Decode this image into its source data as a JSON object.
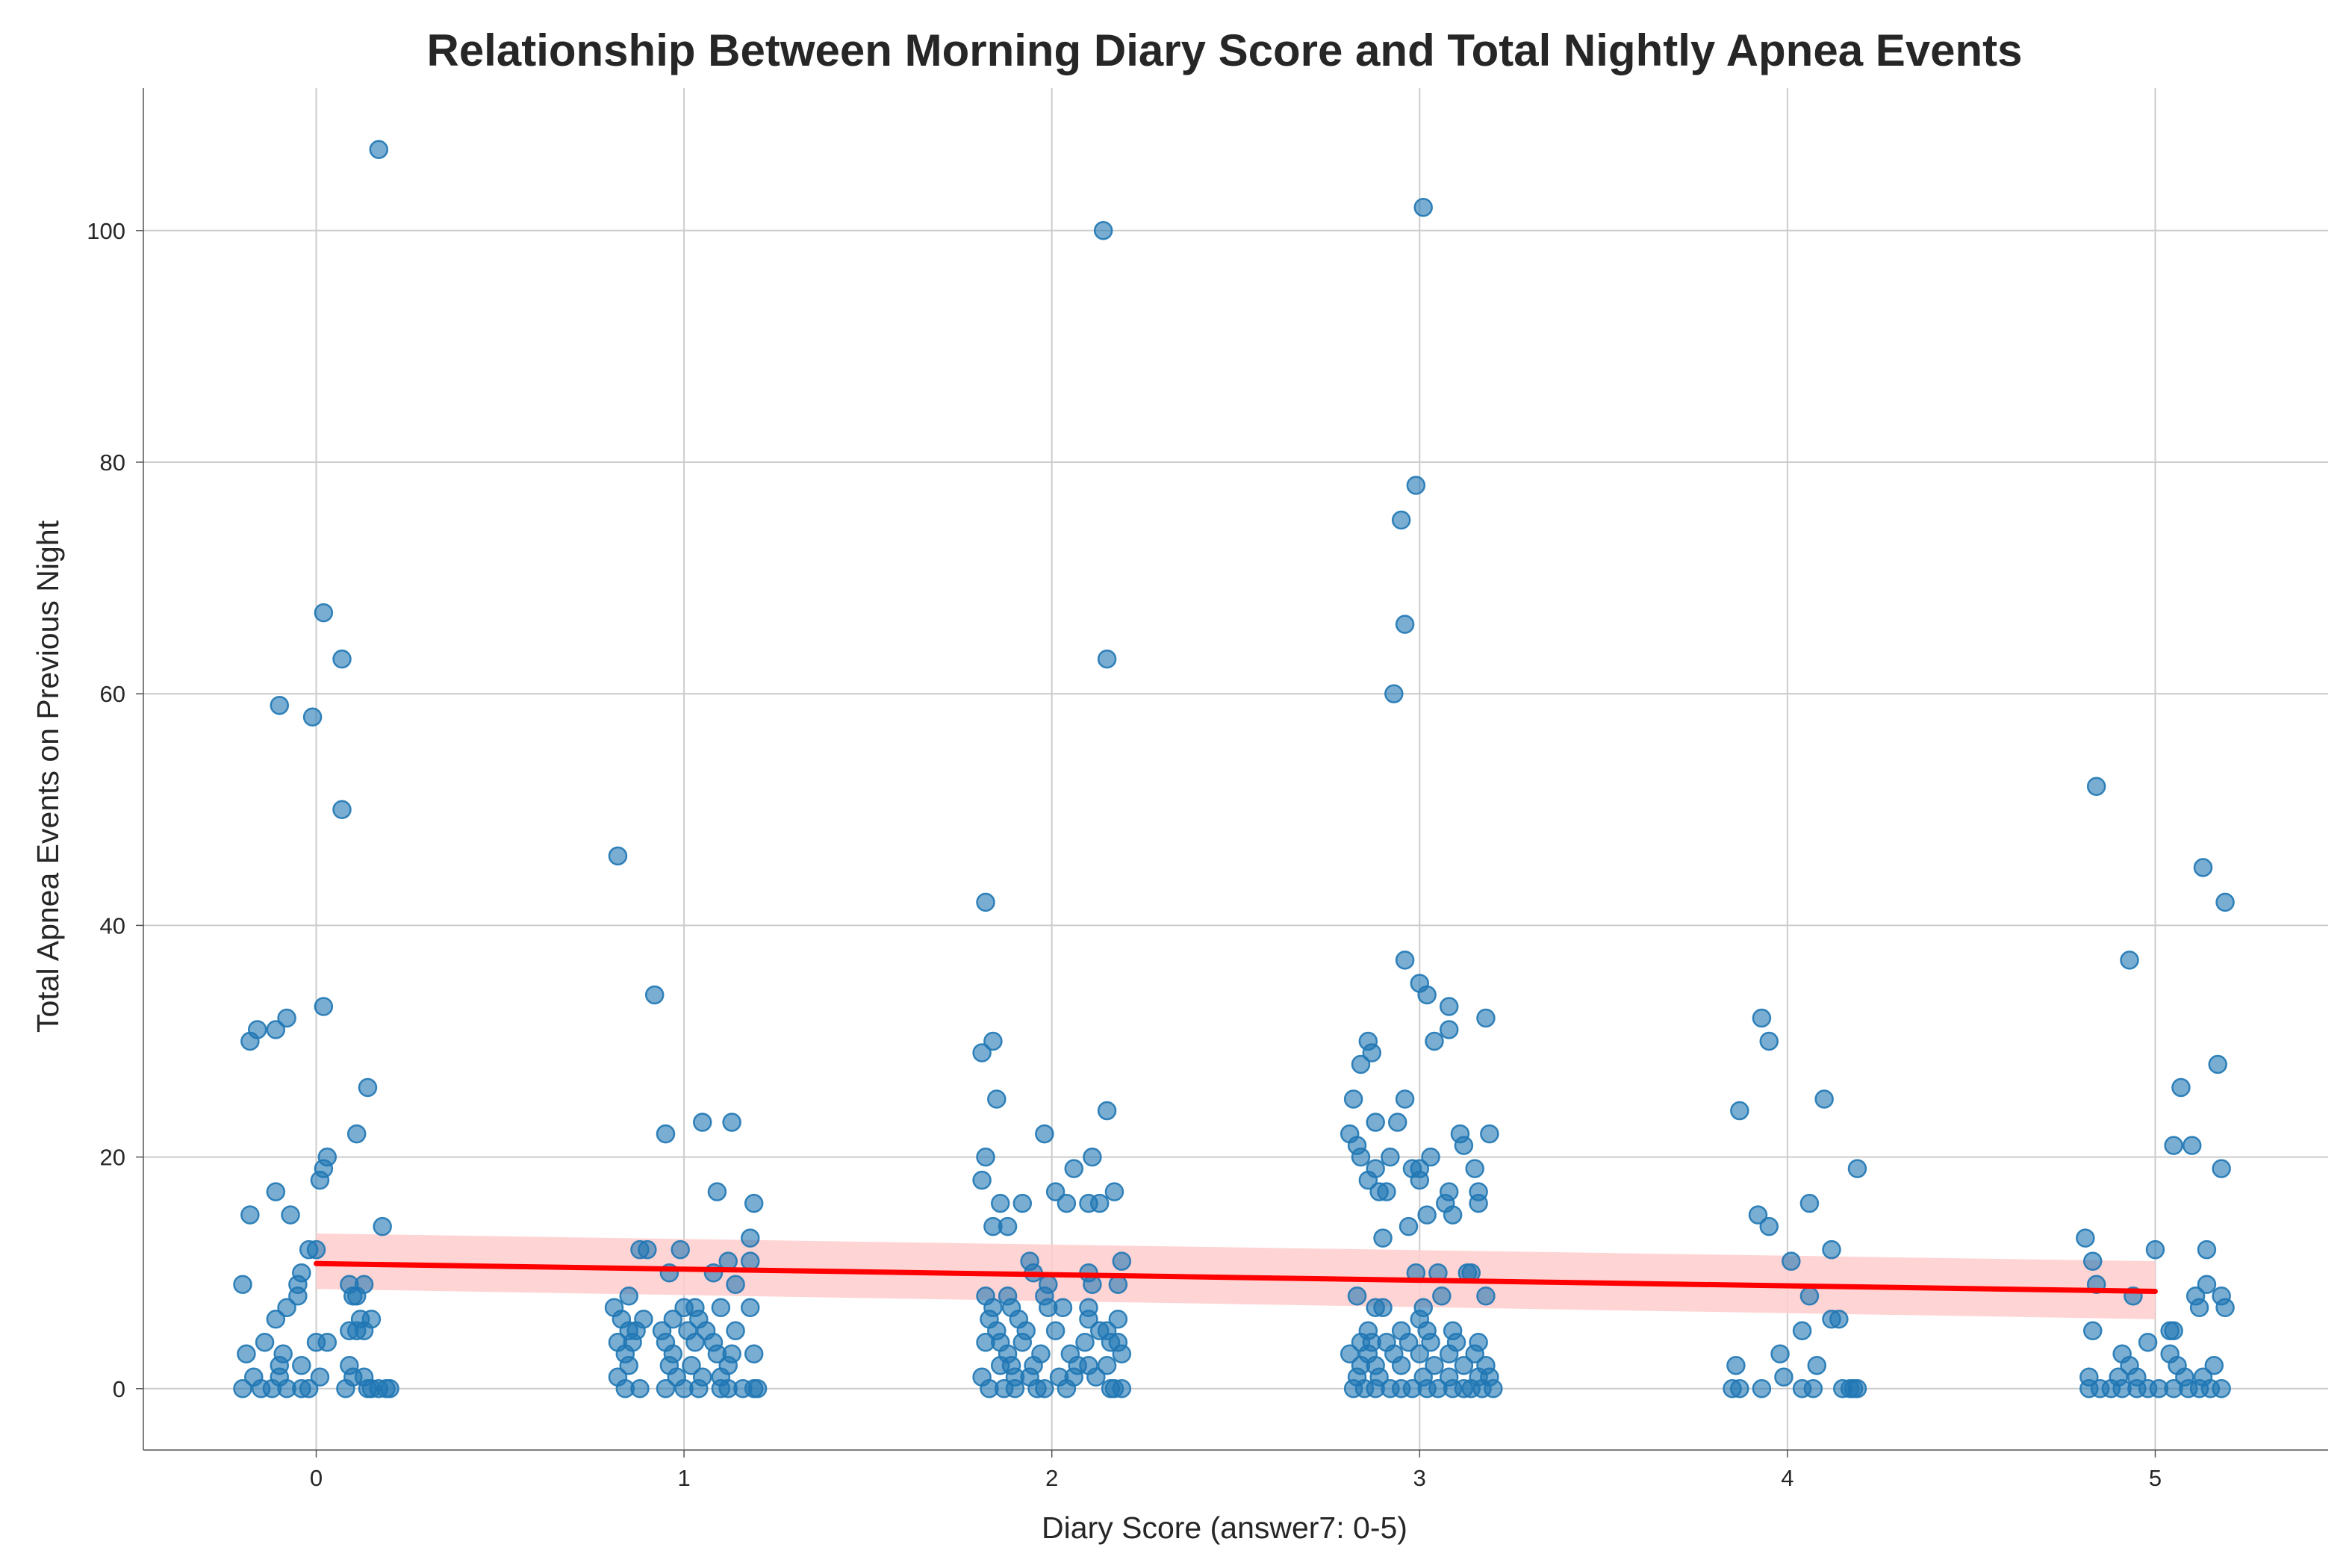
{
  "chart_data": {
    "type": "scatter",
    "title": "Relationship Between Morning Diary Score and Total Nightly Apnea Events",
    "xlabel": "Diary Score (answer7: 0-5)",
    "ylabel": "Total Apnea Events on Previous Night",
    "xlim": [
      -0.47,
      5.47
    ],
    "ylim": [
      -5.3,
      112.3
    ],
    "xticks": [
      0,
      1,
      2,
      3,
      4,
      5
    ],
    "yticks": [
      0,
      20,
      40,
      60,
      80,
      100
    ],
    "grid": true,
    "legend": "none",
    "colors": {
      "points": "#1f77b4",
      "regression_line": "#ff0000",
      "confidence_band": "#ffcccc"
    },
    "regression": {
      "x": [
        0,
        5
      ],
      "y": [
        10.8,
        8.4
      ],
      "ci_lower": [
        8.6,
        6.0
      ],
      "ci_upper": [
        13.4,
        11.0
      ]
    },
    "points": [
      [
        -0.2,
        0
      ],
      [
        -0.15,
        0
      ],
      [
        -0.12,
        0
      ],
      [
        -0.08,
        0
      ],
      [
        -0.04,
        0
      ],
      [
        -0.02,
        0
      ],
      [
        0.08,
        0
      ],
      [
        0.14,
        0
      ],
      [
        0.15,
        0
      ],
      [
        0.17,
        0
      ],
      [
        0.19,
        0
      ],
      [
        0.2,
        0
      ],
      [
        -0.17,
        1
      ],
      [
        -0.1,
        1
      ],
      [
        0.01,
        1
      ],
      [
        0.1,
        1
      ],
      [
        0.13,
        1
      ],
      [
        -0.1,
        2
      ],
      [
        -0.04,
        2
      ],
      [
        0.09,
        2
      ],
      [
        -0.19,
        3
      ],
      [
        -0.09,
        3
      ],
      [
        -0.14,
        4
      ],
      [
        0.0,
        4
      ],
      [
        0.03,
        4
      ],
      [
        0.09,
        5
      ],
      [
        0.11,
        5
      ],
      [
        0.13,
        5
      ],
      [
        -0.11,
        6
      ],
      [
        0.12,
        6
      ],
      [
        0.15,
        6
      ],
      [
        -0.08,
        7
      ],
      [
        -0.05,
        8
      ],
      [
        0.1,
        8
      ],
      [
        0.11,
        8
      ],
      [
        -0.05,
        9
      ],
      [
        -0.2,
        9
      ],
      [
        0.09,
        9
      ],
      [
        0.13,
        9
      ],
      [
        -0.04,
        10
      ],
      [
        -0.02,
        12
      ],
      [
        0.0,
        12
      ],
      [
        0.18,
        14
      ],
      [
        -0.18,
        15
      ],
      [
        -0.07,
        15
      ],
      [
        -0.11,
        17
      ],
      [
        0.01,
        18
      ],
      [
        0.02,
        19
      ],
      [
        0.03,
        20
      ],
      [
        0.11,
        22
      ],
      [
        0.14,
        26
      ],
      [
        -0.18,
        30
      ],
      [
        -0.16,
        31
      ],
      [
        -0.11,
        31
      ],
      [
        -0.08,
        32
      ],
      [
        0.02,
        33
      ],
      [
        0.07,
        50
      ],
      [
        -0.01,
        58
      ],
      [
        -0.1,
        59
      ],
      [
        0.07,
        63
      ],
      [
        0.02,
        67
      ],
      [
        0.17,
        107
      ],
      [
        0.84,
        0
      ],
      [
        0.88,
        0
      ],
      [
        0.95,
        0
      ],
      [
        1.0,
        0
      ],
      [
        1.04,
        0
      ],
      [
        1.1,
        0
      ],
      [
        1.12,
        0
      ],
      [
        1.16,
        0
      ],
      [
        1.19,
        0
      ],
      [
        1.2,
        0
      ],
      [
        0.82,
        1
      ],
      [
        0.98,
        1
      ],
      [
        1.05,
        1
      ],
      [
        1.1,
        1
      ],
      [
        0.85,
        2
      ],
      [
        0.96,
        2
      ],
      [
        1.02,
        2
      ],
      [
        1.12,
        2
      ],
      [
        0.84,
        3
      ],
      [
        0.97,
        3
      ],
      [
        1.09,
        3
      ],
      [
        1.13,
        3
      ],
      [
        1.19,
        3
      ],
      [
        0.82,
        4
      ],
      [
        0.86,
        4
      ],
      [
        0.95,
        4
      ],
      [
        1.03,
        4
      ],
      [
        1.08,
        4
      ],
      [
        0.85,
        5
      ],
      [
        0.87,
        5
      ],
      [
        0.94,
        5
      ],
      [
        1.01,
        5
      ],
      [
        1.06,
        5
      ],
      [
        1.14,
        5
      ],
      [
        0.83,
        6
      ],
      [
        0.89,
        6
      ],
      [
        0.97,
        6
      ],
      [
        1.04,
        6
      ],
      [
        0.81,
        7
      ],
      [
        1.0,
        7
      ],
      [
        1.03,
        7
      ],
      [
        1.1,
        7
      ],
      [
        1.18,
        7
      ],
      [
        0.85,
        8
      ],
      [
        1.14,
        9
      ],
      [
        0.96,
        10
      ],
      [
        1.08,
        10
      ],
      [
        1.12,
        11
      ],
      [
        1.18,
        11
      ],
      [
        0.88,
        12
      ],
      [
        0.9,
        12
      ],
      [
        0.99,
        12
      ],
      [
        1.18,
        13
      ],
      [
        1.19,
        16
      ],
      [
        1.09,
        17
      ],
      [
        0.95,
        22
      ],
      [
        1.05,
        23
      ],
      [
        1.13,
        23
      ],
      [
        0.92,
        34
      ],
      [
        0.82,
        46
      ],
      [
        1.83,
        0
      ],
      [
        1.87,
        0
      ],
      [
        1.9,
        0
      ],
      [
        1.96,
        0
      ],
      [
        1.98,
        0
      ],
      [
        2.04,
        0
      ],
      [
        2.16,
        0
      ],
      [
        2.17,
        0
      ],
      [
        2.19,
        0
      ],
      [
        1.81,
        1
      ],
      [
        1.9,
        1
      ],
      [
        1.94,
        1
      ],
      [
        2.02,
        1
      ],
      [
        2.06,
        1
      ],
      [
        2.12,
        1
      ],
      [
        1.86,
        2
      ],
      [
        1.89,
        2
      ],
      [
        1.95,
        2
      ],
      [
        2.07,
        2
      ],
      [
        2.1,
        2
      ],
      [
        2.15,
        2
      ],
      [
        1.88,
        3
      ],
      [
        1.97,
        3
      ],
      [
        2.05,
        3
      ],
      [
        2.19,
        3
      ],
      [
        1.82,
        4
      ],
      [
        1.86,
        4
      ],
      [
        1.92,
        4
      ],
      [
        2.09,
        4
      ],
      [
        2.16,
        4
      ],
      [
        2.18,
        4
      ],
      [
        1.85,
        5
      ],
      [
        1.93,
        5
      ],
      [
        2.01,
        5
      ],
      [
        2.13,
        5
      ],
      [
        2.15,
        5
      ],
      [
        1.83,
        6
      ],
      [
        1.91,
        6
      ],
      [
        2.1,
        6
      ],
      [
        2.18,
        6
      ],
      [
        1.84,
        7
      ],
      [
        1.89,
        7
      ],
      [
        1.99,
        7
      ],
      [
        2.03,
        7
      ],
      [
        2.1,
        7
      ],
      [
        1.82,
        8
      ],
      [
        1.88,
        8
      ],
      [
        1.98,
        8
      ],
      [
        1.99,
        9
      ],
      [
        2.11,
        9
      ],
      [
        2.18,
        9
      ],
      [
        1.95,
        10
      ],
      [
        2.1,
        10
      ],
      [
        1.94,
        11
      ],
      [
        2.19,
        11
      ],
      [
        1.84,
        14
      ],
      [
        1.88,
        14
      ],
      [
        1.86,
        16
      ],
      [
        1.92,
        16
      ],
      [
        2.04,
        16
      ],
      [
        2.1,
        16
      ],
      [
        2.13,
        16
      ],
      [
        2.01,
        17
      ],
      [
        2.17,
        17
      ],
      [
        1.81,
        18
      ],
      [
        2.06,
        19
      ],
      [
        1.82,
        20
      ],
      [
        2.11,
        20
      ],
      [
        1.98,
        22
      ],
      [
        2.15,
        24
      ],
      [
        1.85,
        25
      ],
      [
        1.81,
        29
      ],
      [
        1.84,
        30
      ],
      [
        1.82,
        42
      ],
      [
        2.15,
        63
      ],
      [
        2.14,
        100
      ],
      [
        2.82,
        0
      ],
      [
        2.85,
        0
      ],
      [
        2.88,
        0
      ],
      [
        2.92,
        0
      ],
      [
        2.95,
        0
      ],
      [
        2.98,
        0
      ],
      [
        3.02,
        0
      ],
      [
        3.05,
        0
      ],
      [
        3.09,
        0
      ],
      [
        3.12,
        0
      ],
      [
        3.14,
        0
      ],
      [
        3.17,
        0
      ],
      [
        3.2,
        0
      ],
      [
        2.83,
        1
      ],
      [
        2.89,
        1
      ],
      [
        3.01,
        1
      ],
      [
        3.08,
        1
      ],
      [
        3.16,
        1
      ],
      [
        3.19,
        1
      ],
      [
        2.84,
        2
      ],
      [
        2.88,
        2
      ],
      [
        2.95,
        2
      ],
      [
        3.04,
        2
      ],
      [
        3.12,
        2
      ],
      [
        3.18,
        2
      ],
      [
        2.81,
        3
      ],
      [
        2.86,
        3
      ],
      [
        2.93,
        3
      ],
      [
        3.0,
        3
      ],
      [
        3.08,
        3
      ],
      [
        3.15,
        3
      ],
      [
        2.84,
        4
      ],
      [
        2.87,
        4
      ],
      [
        2.91,
        4
      ],
      [
        2.97,
        4
      ],
      [
        3.03,
        4
      ],
      [
        3.1,
        4
      ],
      [
        3.16,
        4
      ],
      [
        2.86,
        5
      ],
      [
        2.95,
        5
      ],
      [
        3.02,
        5
      ],
      [
        3.09,
        5
      ],
      [
        3.0,
        6
      ],
      [
        2.88,
        7
      ],
      [
        2.9,
        7
      ],
      [
        3.01,
        7
      ],
      [
        2.83,
        8
      ],
      [
        3.06,
        8
      ],
      [
        3.18,
        8
      ],
      [
        2.99,
        10
      ],
      [
        3.05,
        10
      ],
      [
        3.13,
        10
      ],
      [
        3.14,
        10
      ],
      [
        2.9,
        13
      ],
      [
        2.97,
        14
      ],
      [
        3.02,
        15
      ],
      [
        3.09,
        15
      ],
      [
        3.07,
        16
      ],
      [
        3.16,
        16
      ],
      [
        2.89,
        17
      ],
      [
        2.91,
        17
      ],
      [
        3.08,
        17
      ],
      [
        3.16,
        17
      ],
      [
        2.86,
        18
      ],
      [
        3.0,
        18
      ],
      [
        2.88,
        19
      ],
      [
        2.98,
        19
      ],
      [
        3.0,
        19
      ],
      [
        3.15,
        19
      ],
      [
        2.84,
        20
      ],
      [
        2.92,
        20
      ],
      [
        3.03,
        20
      ],
      [
        2.83,
        21
      ],
      [
        3.12,
        21
      ],
      [
        2.81,
        22
      ],
      [
        3.11,
        22
      ],
      [
        3.19,
        22
      ],
      [
        2.88,
        23
      ],
      [
        2.94,
        23
      ],
      [
        2.82,
        25
      ],
      [
        2.96,
        25
      ],
      [
        2.84,
        28
      ],
      [
        2.87,
        29
      ],
      [
        2.86,
        30
      ],
      [
        3.04,
        30
      ],
      [
        3.08,
        31
      ],
      [
        3.18,
        32
      ],
      [
        3.08,
        33
      ],
      [
        3.02,
        34
      ],
      [
        3.0,
        35
      ],
      [
        2.96,
        37
      ],
      [
        2.93,
        60
      ],
      [
        2.96,
        66
      ],
      [
        2.95,
        75
      ],
      [
        2.99,
        78
      ],
      [
        3.01,
        102
      ],
      [
        3.85,
        0
      ],
      [
        3.87,
        0
      ],
      [
        3.93,
        0
      ],
      [
        4.04,
        0
      ],
      [
        4.07,
        0
      ],
      [
        4.15,
        0
      ],
      [
        4.17,
        0
      ],
      [
        4.18,
        0
      ],
      [
        4.19,
        0
      ],
      [
        3.99,
        1
      ],
      [
        3.86,
        2
      ],
      [
        4.08,
        2
      ],
      [
        3.98,
        3
      ],
      [
        4.04,
        5
      ],
      [
        4.12,
        6
      ],
      [
        4.14,
        6
      ],
      [
        4.06,
        8
      ],
      [
        4.01,
        11
      ],
      [
        4.12,
        12
      ],
      [
        3.95,
        14
      ],
      [
        3.92,
        15
      ],
      [
        4.06,
        16
      ],
      [
        4.19,
        19
      ],
      [
        3.87,
        24
      ],
      [
        4.1,
        25
      ],
      [
        3.95,
        30
      ],
      [
        3.93,
        32
      ],
      [
        4.82,
        0
      ],
      [
        4.85,
        0
      ],
      [
        4.88,
        0
      ],
      [
        4.91,
        0
      ],
      [
        4.95,
        0
      ],
      [
        4.98,
        0
      ],
      [
        5.01,
        0
      ],
      [
        5.05,
        0
      ],
      [
        5.09,
        0
      ],
      [
        5.12,
        0
      ],
      [
        5.15,
        0
      ],
      [
        5.18,
        0
      ],
      [
        4.82,
        1
      ],
      [
        4.9,
        1
      ],
      [
        4.95,
        1
      ],
      [
        5.08,
        1
      ],
      [
        5.13,
        1
      ],
      [
        4.93,
        2
      ],
      [
        5.06,
        2
      ],
      [
        5.16,
        2
      ],
      [
        4.91,
        3
      ],
      [
        5.04,
        3
      ],
      [
        4.98,
        4
      ],
      [
        5.04,
        5
      ],
      [
        5.05,
        5
      ],
      [
        4.83,
        5
      ],
      [
        5.12,
        7
      ],
      [
        5.19,
        7
      ],
      [
        4.94,
        8
      ],
      [
        5.11,
        8
      ],
      [
        5.18,
        8
      ],
      [
        5.14,
        9
      ],
      [
        4.84,
        9
      ],
      [
        4.83,
        11
      ],
      [
        5.0,
        12
      ],
      [
        5.14,
        12
      ],
      [
        4.81,
        13
      ],
      [
        5.18,
        19
      ],
      [
        5.05,
        21
      ],
      [
        5.1,
        21
      ],
      [
        5.07,
        26
      ],
      [
        5.17,
        28
      ],
      [
        4.93,
        37
      ],
      [
        5.19,
        42
      ],
      [
        5.13,
        45
      ],
      [
        4.84,
        52
      ]
    ]
  }
}
